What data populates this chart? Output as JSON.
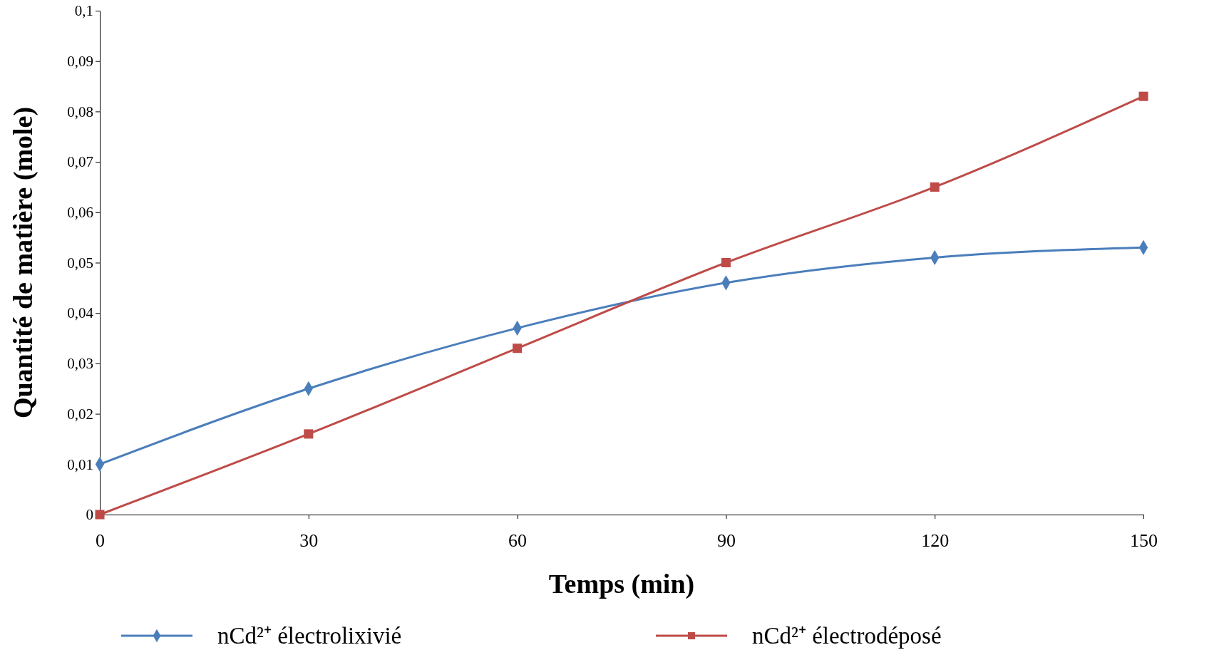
{
  "chart_data": {
    "type": "line",
    "xlabel": "Temps (min)",
    "ylabel": "Quantité de matière (mole)",
    "x": [
      0,
      30,
      60,
      90,
      120,
      150
    ],
    "xlim": [
      0,
      150
    ],
    "xticks": [
      0,
      30,
      60,
      90,
      120,
      150
    ],
    "ylim": [
      0,
      0.1
    ],
    "yticks": [
      {
        "value": 0,
        "label": "0"
      },
      {
        "value": 0.01,
        "label": "0,01"
      },
      {
        "value": 0.02,
        "label": "0,02"
      },
      {
        "value": 0.03,
        "label": "0,03"
      },
      {
        "value": 0.04,
        "label": "0,04"
      },
      {
        "value": 0.05,
        "label": "0,05"
      },
      {
        "value": 0.06,
        "label": "0,06"
      },
      {
        "value": 0.07,
        "label": "0,07"
      },
      {
        "value": 0.08,
        "label": "0,08"
      },
      {
        "value": 0.09,
        "label": "0,09"
      },
      {
        "value": 0.1,
        "label": "0,1"
      }
    ],
    "grid": false,
    "legend": "bottom",
    "series": [
      {
        "name": "nCd²⁺ électrolixivié",
        "color": "#4a7ebb",
        "marker": "diamond",
        "values": [
          0.01,
          0.025,
          0.037,
          0.046,
          0.051,
          0.053
        ]
      },
      {
        "name": "nCd²⁺ électrodéposé",
        "color": "#be4b48",
        "marker": "square",
        "values": [
          0,
          0.016,
          0.033,
          0.05,
          0.065,
          0.083
        ]
      }
    ]
  }
}
